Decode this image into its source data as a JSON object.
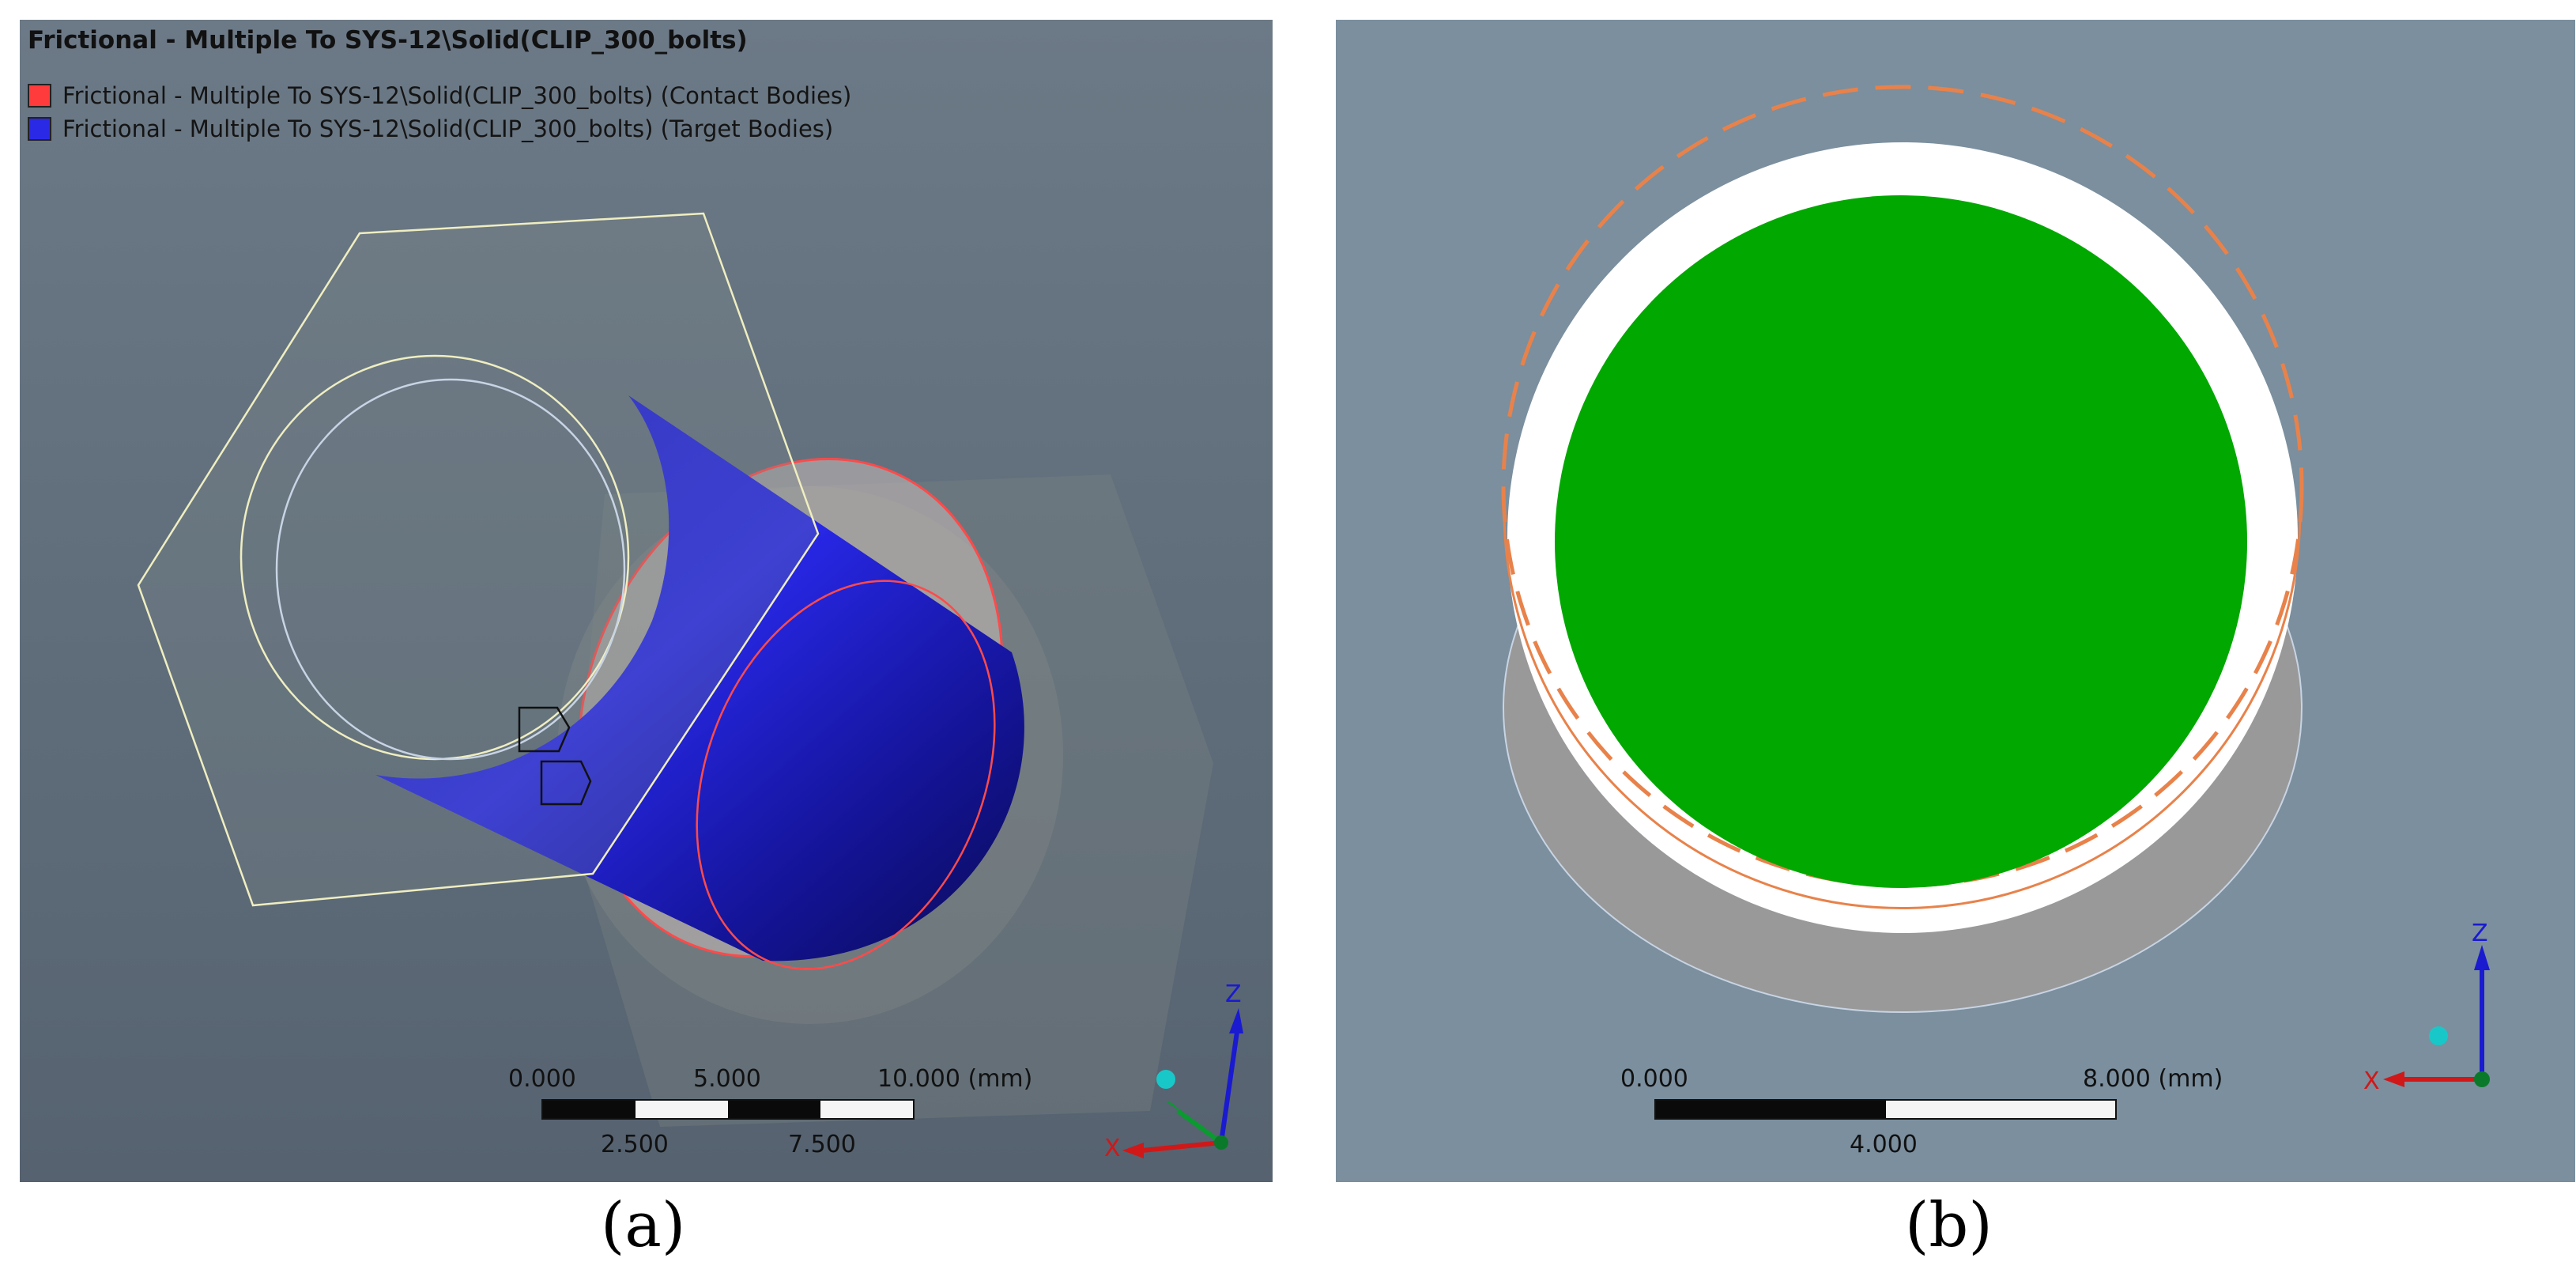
{
  "panel_a": {
    "title": "Frictional - Multiple To SYS-12\\Solid(CLIP_300_bolts)",
    "legend": [
      {
        "label": "Frictional - Multiple To SYS-12\\Solid(CLIP_300_bolts) (Contact Bodies)",
        "color": "#ff3b3b"
      },
      {
        "label": "Frictional - Multiple To SYS-12\\Solid(CLIP_300_bolts) (Target Bodies)",
        "color": "#2a2ae6"
      }
    ],
    "scale": {
      "top_labels": [
        "0.000",
        "5.000",
        "10.000 (mm)"
      ],
      "bottom_labels": [
        "2.500",
        "7.500"
      ]
    },
    "axes": {
      "z": "Z",
      "x": "X"
    },
    "colors": {
      "contact": "#ff3b3b",
      "target": "#2a2ae6",
      "edge": "#efeec0"
    }
  },
  "panel_b": {
    "scale": {
      "top_labels": [
        "0.000",
        "8.000 (mm)"
      ],
      "bottom_labels": [
        "4.000"
      ]
    },
    "axes": {
      "z": "Z",
      "x": "X"
    },
    "colors": {
      "disk": "#00a800",
      "dashed": "#e8824a",
      "shadow": "#999999"
    }
  },
  "captions": {
    "a": "(a)",
    "b": "(b)"
  }
}
